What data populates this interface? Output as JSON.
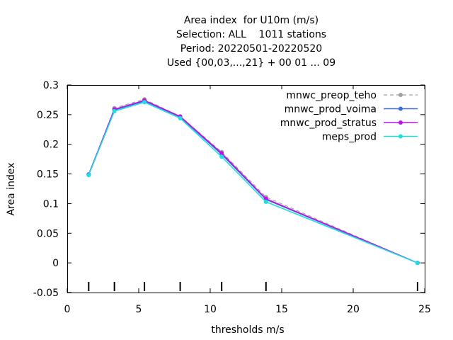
{
  "chart_data": {
    "type": "line",
    "title": [
      "Area index  for U10m (m/s)",
      "Selection: ALL    1011 stations",
      "Period: 20220501-20220520",
      "Used {00,03,...,21} + 00 01 ... 09"
    ],
    "xlabel": "thresholds m/s",
    "ylabel": "Area index",
    "xlim": [
      0,
      25
    ],
    "ylim": [
      -0.05,
      0.3
    ],
    "x_ticks": [
      "0",
      "5",
      "10",
      "15",
      "20",
      "25"
    ],
    "y_ticks": [
      "-0.05",
      "0",
      "0.05",
      "0.1",
      "0.15",
      "0.2",
      "0.25",
      "0.3"
    ],
    "x_tick_values": [
      0,
      5,
      10,
      15,
      20,
      25
    ],
    "y_tick_values": [
      -0.05,
      0,
      0.05,
      0.1,
      0.15,
      0.2,
      0.25,
      0.3
    ],
    "threshold_markers": [
      1.5,
      3.3,
      5.4,
      7.9,
      10.8,
      13.9,
      24.5
    ],
    "grid": false,
    "legend_position": "top-right",
    "x": [
      1.5,
      3.3,
      5.4,
      7.9,
      10.8,
      13.9,
      24.5
    ],
    "series": [
      {
        "name": "mnwc_preop_teho",
        "color": "#a0a0a0",
        "dashed": true,
        "values": [
          0.149,
          0.261,
          0.276,
          0.247,
          0.187,
          0.111,
          0.0
        ]
      },
      {
        "name": "mnwc_prod_voima",
        "color": "#3a6fd6",
        "dashed": false,
        "values": [
          0.149,
          0.258,
          0.273,
          0.246,
          0.183,
          0.107,
          0.0
        ]
      },
      {
        "name": "mnwc_prod_stratus",
        "color": "#c010e8",
        "dashed": false,
        "values": [
          0.149,
          0.259,
          0.274,
          0.247,
          0.185,
          0.108,
          0.0
        ]
      },
      {
        "name": "meps_prod",
        "color": "#18e0e0",
        "dashed": false,
        "values": [
          0.148,
          0.256,
          0.271,
          0.244,
          0.179,
          0.103,
          0.0
        ]
      }
    ]
  }
}
